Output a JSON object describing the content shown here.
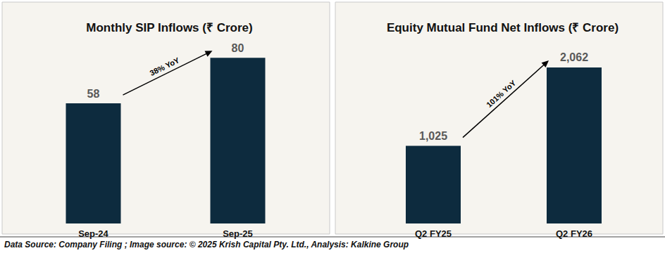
{
  "chart_data": [
    {
      "type": "bar",
      "title": "Monthly SIP Inflows (₹ Crore)",
      "categories": [
        "Sep-24",
        "Sep-25"
      ],
      "values": [
        58,
        80
      ],
      "color": "#0d2b3e",
      "ylim": [
        0,
        95
      ],
      "data_labels": true,
      "tick_labels": "x",
      "grid": false,
      "annotations": [
        "38% YoY"
      ]
    },
    {
      "type": "bar",
      "title": "Equity Mutual Fund Net Inflows (₹ Crore)",
      "categories": [
        "Q2 FY25",
        "Q2 FY26"
      ],
      "values": [
        1025,
        2062
      ],
      "value_labels": [
        "1,025",
        "2,062"
      ],
      "color": "#0d2b3e",
      "ylim": [
        0,
        2600
      ],
      "data_labels": true,
      "tick_labels": "x",
      "grid": false,
      "annotations": [
        "101% YoY"
      ]
    }
  ],
  "footer": "Data Source: Company Filing ; Image source: © 2025 Krish Capital Pty. Ltd., Analysis: Kalkine Group"
}
